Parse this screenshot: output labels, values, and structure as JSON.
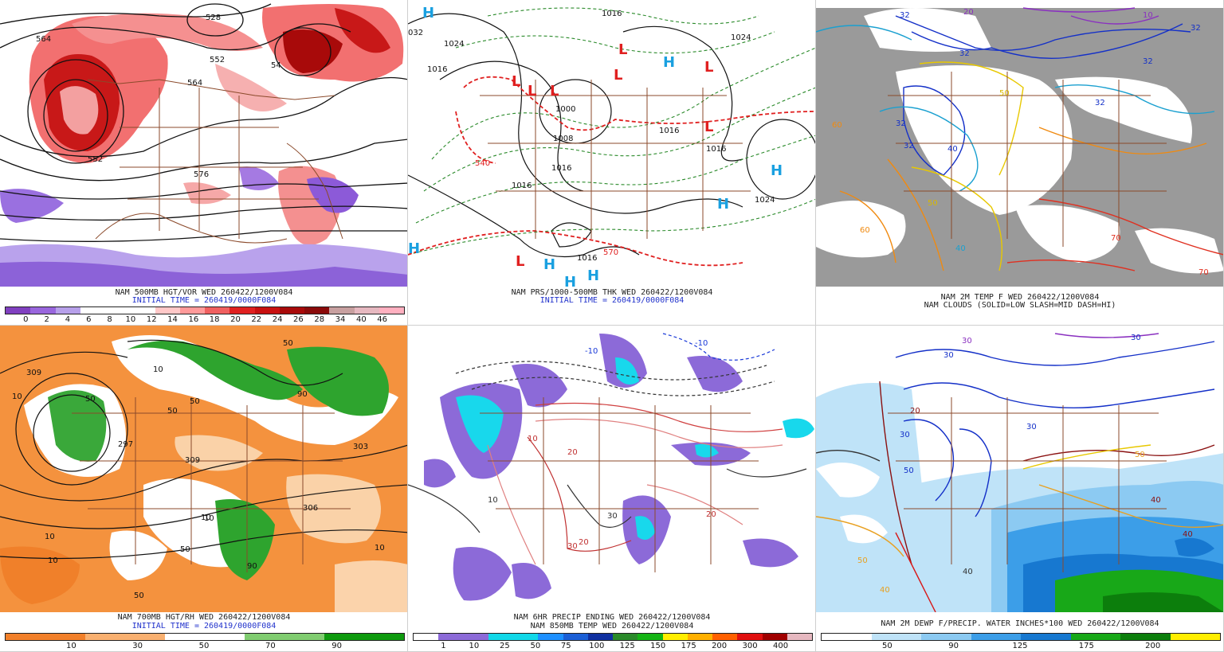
{
  "panels": [
    {
      "caption1": "NAM 500MB HGT/VOR WED 260422/1200V084",
      "caption2": "INITIAL TIME = 260419/0000F084",
      "colorbar_colors": [
        "#8040c0",
        "#9966dd",
        "#b7a0ea",
        "#ffffff",
        "#ffffff",
        "#ffffff",
        "#ffc8c8",
        "#ff9a9a",
        "#f06060",
        "#e02020",
        "#c81010",
        "#a80a0a",
        "#8a0a0a",
        "#c8a0a0",
        "#e6b8c0",
        "#ffb0c0"
      ],
      "colorbar_labels": [
        "0",
        "2",
        "4",
        "6",
        "8",
        "10",
        "12",
        "14",
        "16",
        "18",
        "20",
        "22",
        "24",
        "26",
        "28",
        "34",
        "40",
        "46"
      ],
      "contour_labels": [
        "564",
        "528",
        "552",
        "54",
        "564",
        "552",
        "576"
      ]
    },
    {
      "caption1": "NAM PRS/1000-500MB THK WED 260422/1200V084",
      "caption2": "INITIAL TIME = 260419/0000F084",
      "contour_labels": [
        "1016",
        "032",
        "1024",
        "1016",
        "1000",
        "1008",
        "1016",
        "1016",
        "1016",
        "1016",
        "1024",
        "1024",
        "1016",
        "540",
        "570"
      ],
      "high_symbol": "H",
      "low_symbol": "L"
    },
    {
      "caption1": "NAM 2M TEMP F WED 260422/1200V084",
      "caption2": "NAM CLOUDS (SOLID=LOW SLASH=MID DASH=HI)",
      "contour_labels": [
        "32",
        "20",
        "10",
        "32",
        "32",
        "32",
        "32",
        "32",
        "40",
        "50",
        "60",
        "50",
        "60",
        "70",
        "40",
        "32",
        "70"
      ]
    },
    {
      "caption1": "NAM 700MB HGT/RH WED 260422/1200V084",
      "caption2": "INITIAL TIME = 260419/0000F084",
      "colorbar_colors": [
        "#f2802a",
        "#f2802a",
        "#f9b070",
        "#f9b070",
        "#ffffff",
        "#ffffff",
        "#80cc70",
        "#80cc70",
        "#0e9a0e",
        "#0e9a0e"
      ],
      "colorbar_labels": [
        "10",
        "30",
        "50",
        "70",
        "90"
      ],
      "contour_labels": [
        "309",
        "10",
        "50",
        "50",
        "297",
        "309",
        "10",
        "10",
        "50",
        "50",
        "90",
        "50",
        "10",
        "10",
        "303",
        "90",
        "50",
        "10",
        "10",
        "306"
      ]
    },
    {
      "caption1": "NAM 6HR PRECIP ENDING WED 260422/1200V084",
      "caption2": "NAM 850MB TEMP WED 260422/1200V084",
      "colorbar_colors": [
        "#ffffff",
        "#8c6ad8",
        "#8c6ad8",
        "#12d8e8",
        "#12d8e8",
        "#1e90ff",
        "#1b5fd6",
        "#1030a0",
        "#2a8a2a",
        "#14b414",
        "#ffee00",
        "#ffb000",
        "#ff6000",
        "#e01010",
        "#a00000",
        "#e6b8c0"
      ],
      "colorbar_labels": [
        "1",
        "10",
        "25",
        "50",
        "75",
        "100",
        "125",
        "150",
        "175",
        "200",
        "300",
        "400"
      ],
      "contour_labels": [
        "-10",
        "-10",
        "20",
        "30",
        "10",
        "20",
        "10",
        "30",
        "20"
      ]
    },
    {
      "caption1": "NAM 2M DEWP F/PRECIP. WATER INCHES*100 WED 260422/1200V084",
      "colorbar_colors": [
        "#ffffff",
        "#ffffff",
        "#bfe3f8",
        "#bfe3f8",
        "#8ccaf2",
        "#8ccaf2",
        "#3c9ee8",
        "#3c9ee8",
        "#1778d0",
        "#1778d0",
        "#18a818",
        "#18a818",
        "#0c7e0c",
        "#0c7e0c",
        "#ffee00",
        "#ffee00"
      ],
      "colorbar_labels": [
        "50",
        "90",
        "125",
        "175",
        "200"
      ],
      "contour_labels": [
        "30",
        "30",
        "30",
        "30",
        "50",
        "50",
        "30",
        "40",
        "20",
        "40",
        "40",
        "50",
        "40"
      ]
    }
  ]
}
